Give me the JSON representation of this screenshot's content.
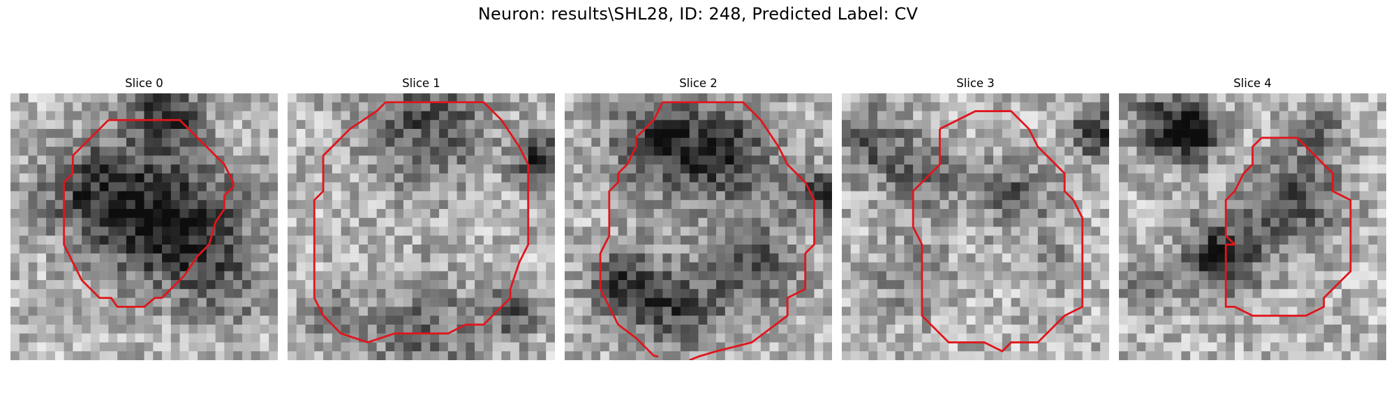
{
  "figure": {
    "title": "Neuron: results\\SHL28, ID: 248, Predicted Label: CV"
  },
  "panels": [
    {
      "label": "Slice 0"
    },
    {
      "label": "Slice 1"
    },
    {
      "label": "Slice 2"
    },
    {
      "label": "Slice 3"
    },
    {
      "label": "Slice 4"
    }
  ],
  "colors": {
    "contour": "#e0161c"
  }
}
